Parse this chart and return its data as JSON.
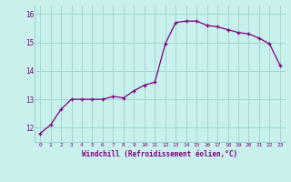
{
  "x": [
    0,
    1,
    2,
    3,
    4,
    5,
    6,
    7,
    8,
    9,
    10,
    11,
    12,
    13,
    14,
    15,
    16,
    17,
    18,
    19,
    20,
    21,
    22,
    23
  ],
  "y": [
    11.8,
    12.1,
    12.65,
    13.0,
    13.0,
    13.0,
    13.0,
    13.1,
    13.05,
    13.3,
    13.5,
    13.6,
    14.95,
    15.7,
    15.75,
    15.75,
    15.6,
    15.55,
    15.45,
    15.35,
    15.3,
    15.15,
    14.95,
    14.2
  ],
  "line_color": "#800080",
  "marker": "+",
  "marker_color": "#800080",
  "bg_color": "#c8f0ec",
  "grid_color": "#a0d8d0",
  "xlabel": "Windchill (Refroidissement éolien,°C)",
  "xlabel_color": "#800080",
  "tick_color": "#800080",
  "xlim": [
    -0.5,
    23.5
  ],
  "ylim": [
    11.5,
    16.3
  ],
  "yticks": [
    12,
    13,
    14,
    15,
    16
  ],
  "xticks": [
    0,
    1,
    2,
    3,
    4,
    5,
    6,
    7,
    8,
    9,
    10,
    11,
    12,
    13,
    14,
    15,
    16,
    17,
    18,
    19,
    20,
    21,
    22,
    23
  ],
  "figsize": [
    3.2,
    2.0
  ],
  "dpi": 100
}
